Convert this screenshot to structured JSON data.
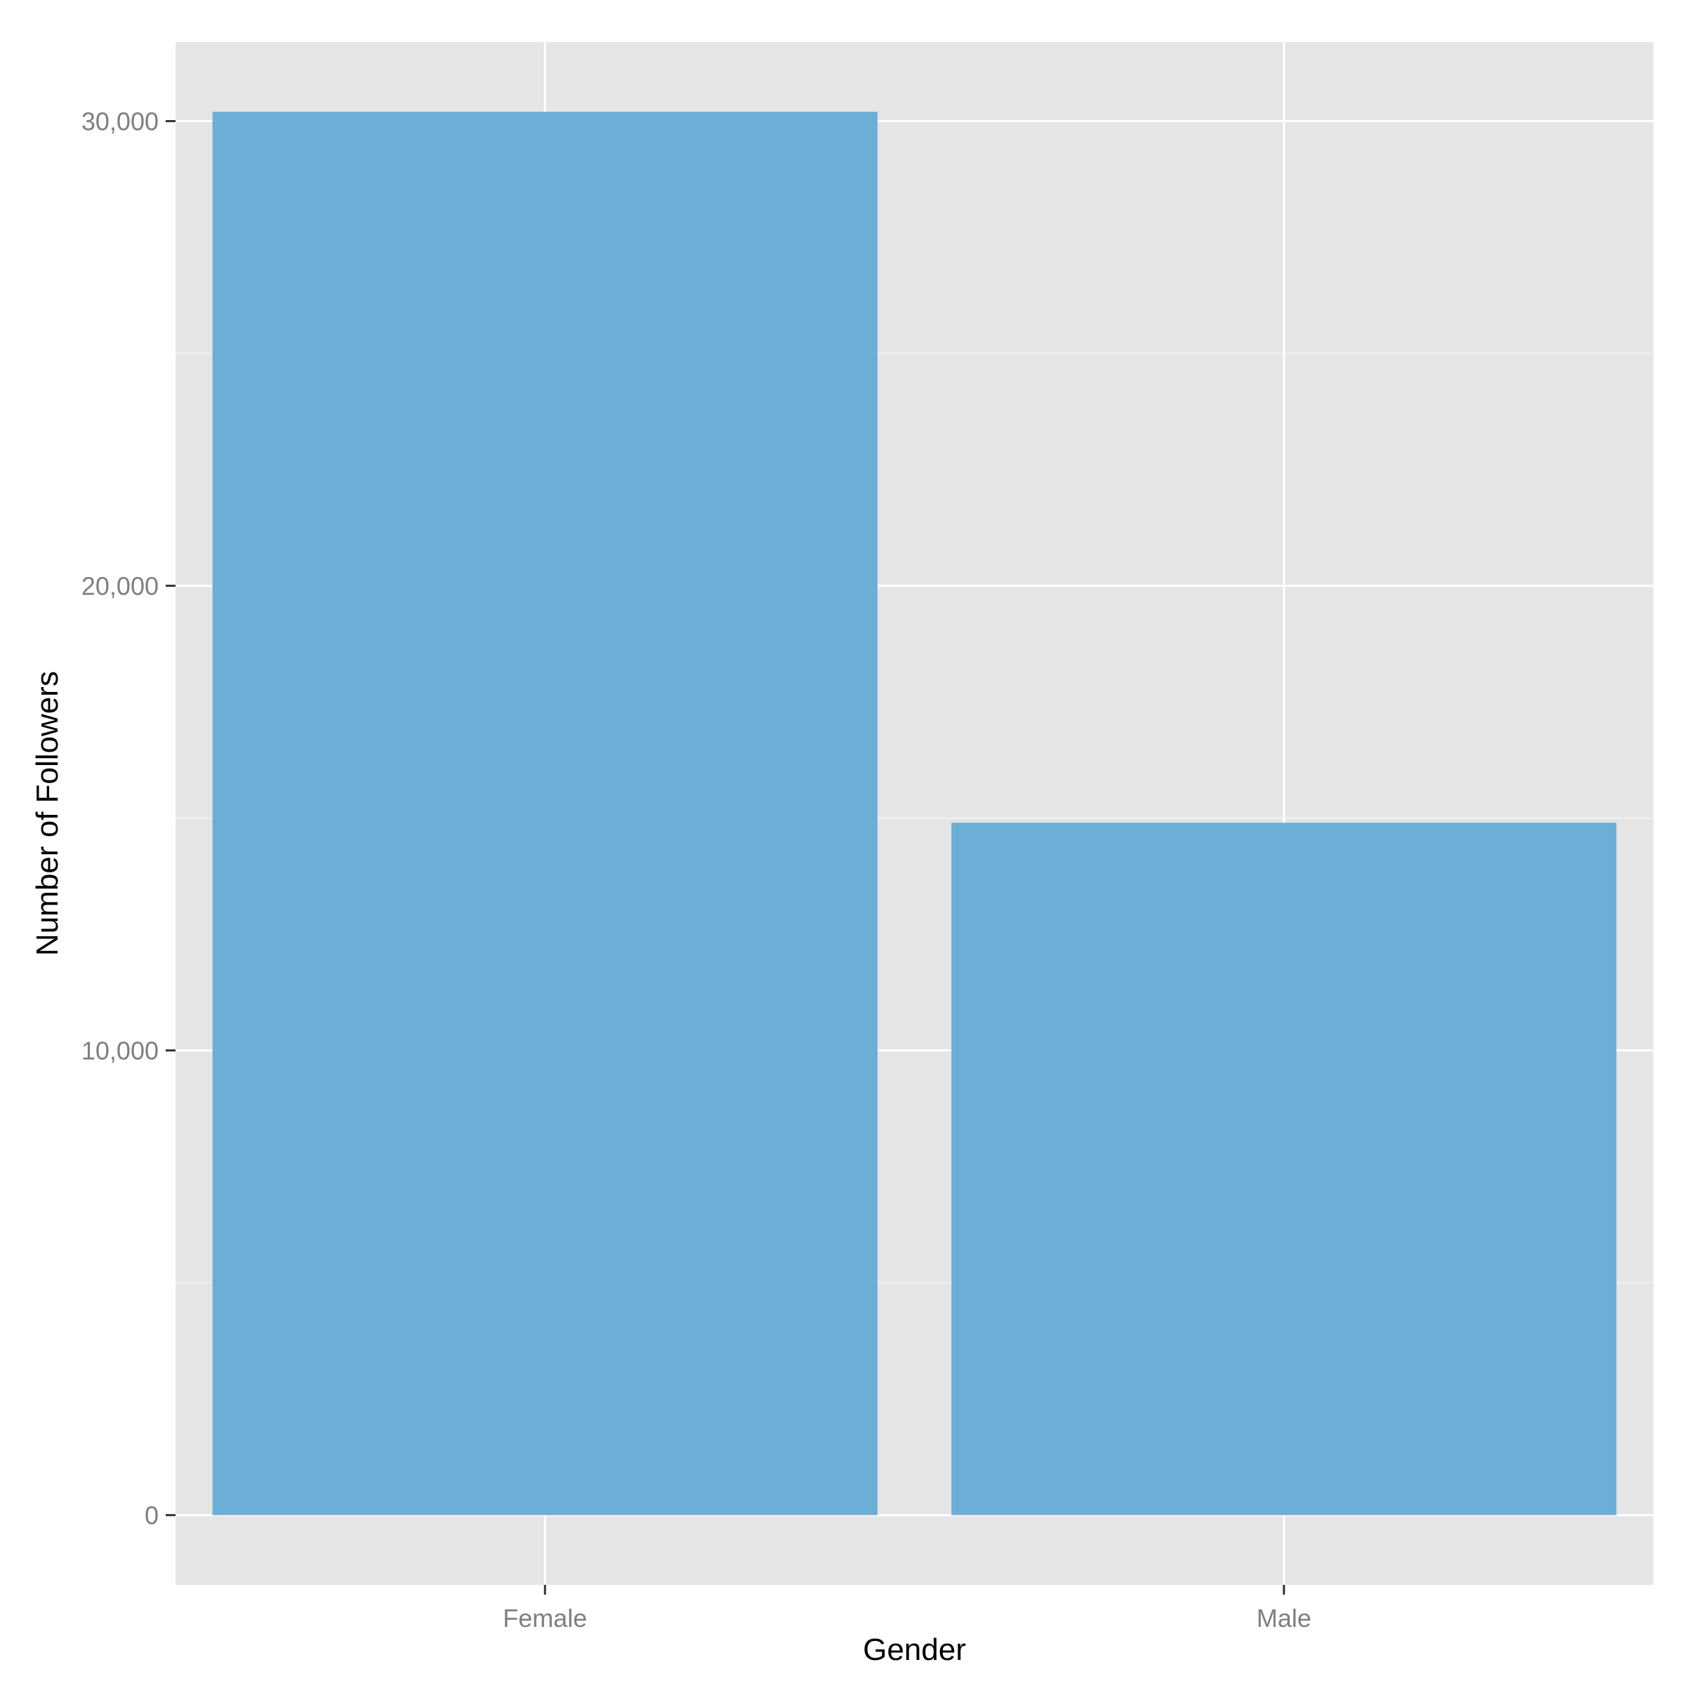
{
  "chart_data": {
    "type": "bar",
    "title": "",
    "xlabel": "Gender",
    "ylabel": "Number of Followers",
    "categories": [
      "Female",
      "Male"
    ],
    "values": [
      30200,
      14900
    ],
    "ylim": [
      -1500,
      31700
    ],
    "yticks": [
      0,
      10000,
      20000,
      30000
    ],
    "ytick_labels": [
      "0",
      "10,000",
      "20,000",
      "30,000"
    ],
    "grid": true,
    "legend": "none",
    "colors": {
      "bar": "#6baed6",
      "panel_background": "#e5e5e5",
      "grid": "#ffffff",
      "tick_text": "#7f7f7f",
      "axis_title": "#000000"
    }
  }
}
